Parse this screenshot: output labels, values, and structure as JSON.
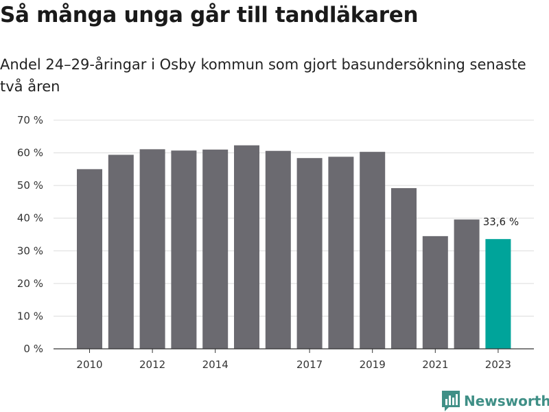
{
  "header": {
    "title": "Så många unga går till tandläkaren",
    "subtitle": "Andel 24–29-åringar i Osby kommun som gjort basundersökning senaste två åren"
  },
  "brand": {
    "name": "Newsworthy",
    "icon": "newsworthy-logo-icon",
    "color": "#3f8f86"
  },
  "chart_data": {
    "type": "bar",
    "x": [
      2010,
      2011,
      2012,
      2013,
      2014,
      2015,
      2016,
      2017,
      2018,
      2019,
      2020,
      2021,
      2022,
      2023
    ],
    "values": [
      55.0,
      59.4,
      61.1,
      60.7,
      61.0,
      62.3,
      60.6,
      58.4,
      58.8,
      60.3,
      49.2,
      34.5,
      39.6,
      33.6
    ],
    "xtick_labels": [
      "2010",
      "2012",
      "2014",
      "2017",
      "2019",
      "2021",
      "2023"
    ],
    "xtick_values": [
      2010,
      2012,
      2014,
      2017,
      2019,
      2021,
      2023
    ],
    "ytick_labels": [
      "0 %",
      "10 %",
      "20 %",
      "30 %",
      "40 %",
      "50 %",
      "60 %",
      "70 %"
    ],
    "ytick_values": [
      0,
      10,
      20,
      30,
      40,
      50,
      60,
      70
    ],
    "ylim": [
      0,
      70
    ],
    "grid": true,
    "bar_color": "#6b6a70",
    "highlight_color": "#00a49a",
    "highlight_index": 13,
    "annotation": "33,6 %"
  }
}
